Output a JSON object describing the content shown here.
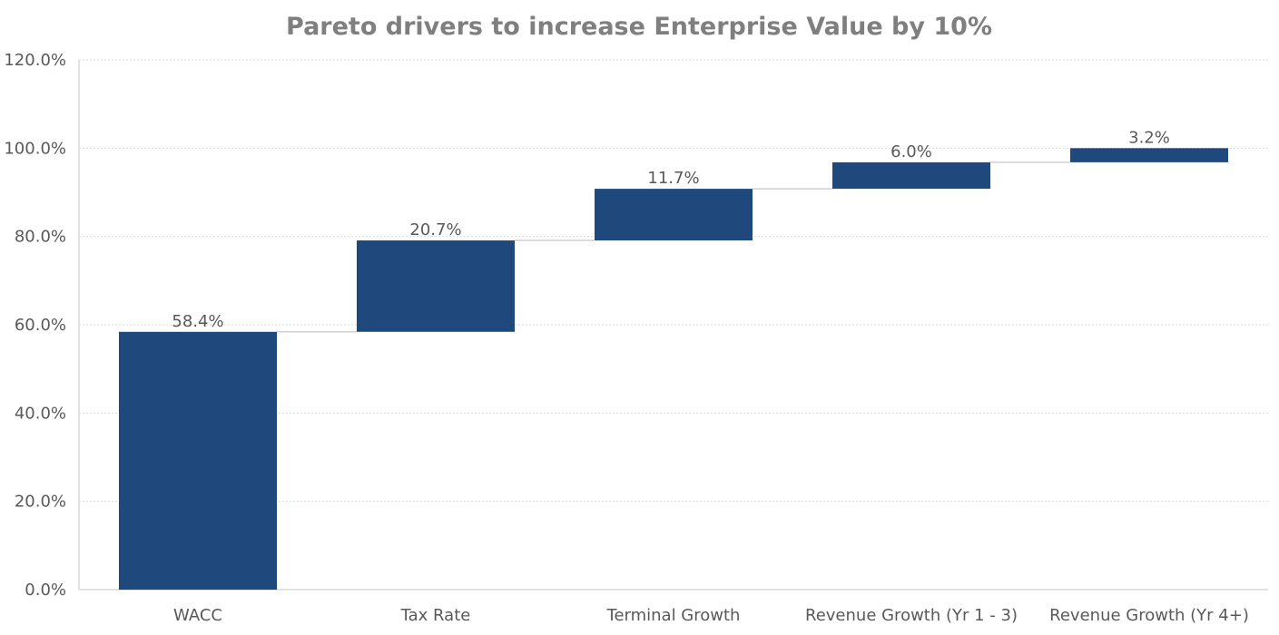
{
  "chart_data": {
    "type": "bar",
    "subtype": "waterfall",
    "title": "Pareto drivers to increase Enterprise Value by 10%",
    "xlabel": "",
    "ylabel": "",
    "ylim": [
      0,
      120
    ],
    "yticks": [
      "0.0%",
      "20.0%",
      "40.0%",
      "60.0%",
      "80.0%",
      "100.0%",
      "120.0%"
    ],
    "grid": true,
    "legend": "none",
    "categories": [
      "WACC",
      "Tax Rate",
      "Terminal Growth",
      "Revenue Growth (Yr 1 - 3)",
      "Revenue Growth (Yr 4+)"
    ],
    "values": [
      58.4,
      20.7,
      11.7,
      6.0,
      3.2
    ],
    "labels": [
      "58.4%",
      "20.7%",
      "11.7%",
      "6.0%",
      "3.2%"
    ],
    "colors": {
      "bar": "#1F497D",
      "text": "#595959",
      "title": "#7F7F7F",
      "grid": "#D9D9D9",
      "connector": "#D0D0D0"
    }
  }
}
